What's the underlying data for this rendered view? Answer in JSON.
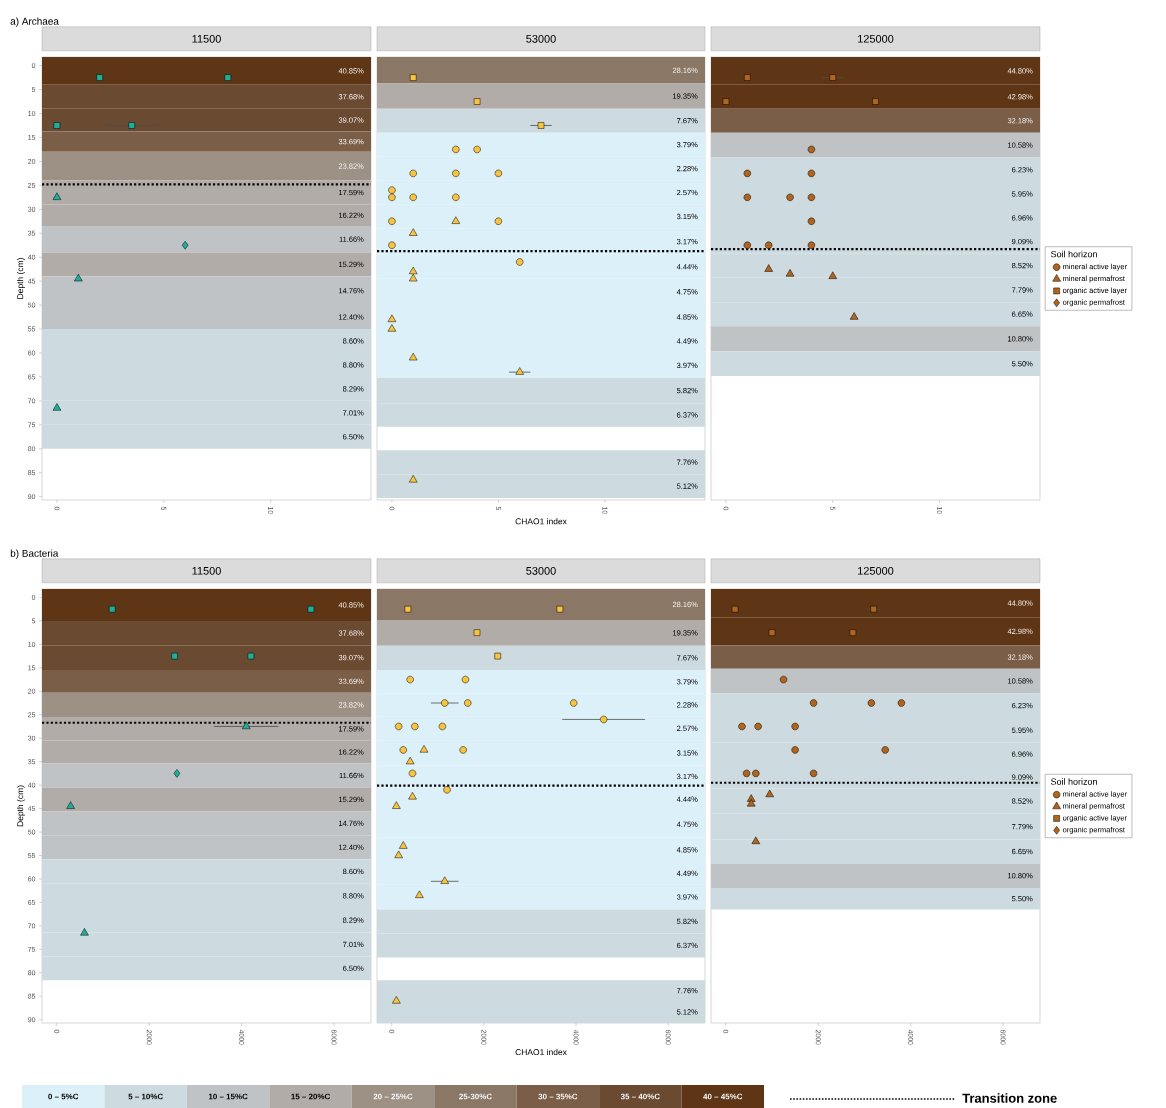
{
  "chart_data": [
    {
      "type": "scatter",
      "title": "11500",
      "ylabel": "Depth (cm)",
      "annotations": [
        "a) Archaea"
      ],
      "xlim": [
        -0.7,
        14.7
      ],
      "ylim": [
        90.7,
        -1.8
      ],
      "xticks": [
        0,
        5,
        10
      ],
      "yticks": [
        0,
        5,
        10,
        15,
        20,
        25,
        30,
        35,
        40,
        45,
        50,
        55,
        60,
        65,
        70,
        75,
        80,
        85,
        90
      ],
      "bands": [
        {
          "axis": "y",
          "from": -1.8,
          "to": 4,
          "label": "40.85%",
          "color": "#5f3615"
        },
        {
          "axis": "y",
          "from": 4,
          "to": 9,
          "label": "37.68%",
          "color": "#6b4a32"
        },
        {
          "axis": "y",
          "from": 9,
          "to": 13.75,
          "label": "39.07%",
          "color": "#6b4a32"
        },
        {
          "axis": "y",
          "from": 13.75,
          "to": 18,
          "label": "33.69%",
          "color": "#7a5e48"
        },
        {
          "axis": "y",
          "from": 18,
          "to": 24,
          "label": "23.82%",
          "color": "#9d9084"
        },
        {
          "axis": "y",
          "from": 24,
          "to": 29,
          "label": "17.59%",
          "color": "#b1aca8"
        },
        {
          "axis": "y",
          "from": 29,
          "to": 33.5,
          "label": "16.22%",
          "color": "#b1aca8"
        },
        {
          "axis": "y",
          "from": 33.5,
          "to": 39,
          "label": "11.66%",
          "color": "#c0c3c5"
        },
        {
          "axis": "y",
          "from": 39,
          "to": 44,
          "label": "15.29%",
          "color": "#b1aca8"
        },
        {
          "axis": "y",
          "from": 44,
          "to": 50,
          "label": "14.76%",
          "color": "#c0c3c5"
        },
        {
          "axis": "y",
          "from": 50,
          "to": 55,
          "label": "12.40%",
          "color": "#c0c3c5"
        },
        {
          "axis": "y",
          "from": 55,
          "to": 60,
          "label": "8.60%",
          "color": "#cddbe1"
        },
        {
          "axis": "y",
          "from": 60,
          "to": 65,
          "label": "8.80%",
          "color": "#cddbe1"
        },
        {
          "axis": "y",
          "from": 65,
          "to": 70,
          "label": "8.29%",
          "color": "#cddbe1"
        },
        {
          "axis": "y",
          "from": 70,
          "to": 75,
          "label": "7.01%",
          "color": "#cddbe1"
        },
        {
          "axis": "y",
          "from": 75,
          "to": 80,
          "label": "6.50%",
          "color": "#cddbe1"
        }
      ],
      "ref_lines": [
        {
          "axis": "y",
          "value": 24.8,
          "line_style": "dotted"
        }
      ],
      "series": [
        {
          "color": "#1fae9a",
          "marker": "triangle",
          "x": [
            0,
            1,
            0
          ],
          "values": [
            27.5,
            44.5,
            71.5
          ]
        },
        {
          "color": "#1fae9a",
          "marker": "square",
          "x": [
            2,
            8,
            0,
            3.5
          ],
          "values": [
            2.5,
            2.5,
            12.5,
            12.5
          ],
          "xerrors": [
            null,
            null,
            null,
            1.25
          ]
        },
        {
          "color": "#1fae9a",
          "marker": "diamond",
          "x": [
            6
          ],
          "values": [
            37.5
          ]
        }
      ]
    },
    {
      "type": "scatter",
      "title": "53000",
      "xlabel": "CHAO1 index",
      "tick_labels": "x",
      "xlim": [
        -0.7,
        14.7
      ],
      "ylim": [
        90.7,
        -1.8
      ],
      "xticks": [
        0,
        5,
        10
      ],
      "bands": [
        {
          "axis": "y",
          "from": -1.8,
          "to": 3.75,
          "label": "28.16%",
          "color": "#8b7766"
        },
        {
          "axis": "y",
          "from": 3.75,
          "to": 9,
          "label": "19.35%",
          "color": "#b1aca8"
        },
        {
          "axis": "y",
          "from": 9,
          "to": 14,
          "label": "7.67%",
          "color": "#cddbe1"
        },
        {
          "axis": "y",
          "from": 14,
          "to": 19,
          "label": "3.79%",
          "color": "#dcf0fa"
        },
        {
          "axis": "y",
          "from": 19,
          "to": 24,
          "label": "2.28%",
          "color": "#dcf0fa"
        },
        {
          "axis": "y",
          "from": 24,
          "to": 29,
          "label": "2.57%",
          "color": "#dcf0fa"
        },
        {
          "axis": "y",
          "from": 29,
          "to": 34,
          "label": "3.15%",
          "color": "#dcf0fa"
        },
        {
          "axis": "y",
          "from": 34,
          "to": 39.5,
          "label": "3.17%",
          "color": "#dcf0fa"
        },
        {
          "axis": "y",
          "from": 39.5,
          "to": 44.5,
          "label": "4.44%",
          "color": "#dcf0fa"
        },
        {
          "axis": "y",
          "from": 44.5,
          "to": 50,
          "label": "4.75%",
          "color": "#dcf0fa"
        },
        {
          "axis": "y",
          "from": 50,
          "to": 55,
          "label": "4.85%",
          "color": "#dcf0fa"
        },
        {
          "axis": "y",
          "from": 55,
          "to": 60,
          "label": "4.49%",
          "color": "#dcf0fa"
        },
        {
          "axis": "y",
          "from": 60,
          "to": 65.2,
          "label": "3.97%",
          "color": "#dcf0fa"
        },
        {
          "axis": "y",
          "from": 65.2,
          "to": 70.5,
          "label": "5.82%",
          "color": "#cddbe1"
        },
        {
          "axis": "y",
          "from": 70.5,
          "to": 75.4,
          "label": "6.37%",
          "color": "#cddbe1"
        },
        {
          "axis": "y",
          "from": 80.3,
          "to": 85.3,
          "label": "7.76%",
          "color": "#cddbe1"
        },
        {
          "axis": "y",
          "from": 85.3,
          "to": 90.3,
          "label": "5.12%",
          "color": "#cddbe1"
        }
      ],
      "ref_lines": [
        {
          "axis": "y",
          "value": 38.75,
          "line_style": "dotted"
        }
      ],
      "series": [
        {
          "color": "#f7c340",
          "marker": "circle",
          "x": [
            3,
            4,
            1,
            3,
            5,
            0,
            0,
            1,
            3,
            0,
            5,
            0,
            6
          ],
          "values": [
            17.5,
            17.5,
            22.5,
            22.5,
            22.5,
            26,
            27.5,
            27.5,
            27.5,
            32.5,
            32.5,
            37.5,
            41
          ]
        },
        {
          "color": "#f7c340",
          "marker": "triangle",
          "x": [
            3,
            1,
            1,
            1,
            0,
            0,
            1,
            6,
            1
          ],
          "values": [
            32.5,
            35,
            43,
            44.5,
            53,
            55,
            61,
            64,
            86.5
          ],
          "xerrors": [
            null,
            null,
            null,
            null,
            null,
            null,
            null,
            0.5,
            null
          ]
        },
        {
          "color": "#f7c340",
          "marker": "square",
          "x": [
            1,
            4,
            7
          ],
          "values": [
            2.5,
            7.5,
            12.5
          ],
          "xerrors": [
            null,
            null,
            0.5
          ]
        }
      ]
    },
    {
      "type": "scatter",
      "title": "125000",
      "tick_labels": "x",
      "legend": "right",
      "legend_title": "Soil horizon",
      "xlim": [
        -0.7,
        14.7
      ],
      "ylim": [
        90.7,
        -1.8
      ],
      "xticks": [
        0,
        5,
        10
      ],
      "bands": [
        {
          "axis": "y",
          "from": -1.8,
          "to": 4,
          "label": "44.80%",
          "color": "#5f3615"
        },
        {
          "axis": "y",
          "from": 4,
          "to": 9,
          "label": "42.98%",
          "color": "#5f3615"
        },
        {
          "axis": "y",
          "from": 9,
          "to": 14,
          "label": "32.18%",
          "color": "#7a5e48"
        },
        {
          "axis": "y",
          "from": 14,
          "to": 19.2,
          "label": "10.58%",
          "color": "#c0c3c5"
        },
        {
          "axis": "y",
          "from": 19.2,
          "to": 24.3,
          "label": "6.23%",
          "color": "#cddbe1"
        },
        {
          "axis": "y",
          "from": 24.3,
          "to": 29.3,
          "label": "5.95%",
          "color": "#cddbe1"
        },
        {
          "axis": "y",
          "from": 29.3,
          "to": 34.3,
          "label": "6.96%",
          "color": "#cddbe1"
        },
        {
          "axis": "y",
          "from": 34.3,
          "to": 39.2,
          "label": "9.09%",
          "color": "#cddbe1"
        },
        {
          "axis": "y",
          "from": 39.2,
          "to": 44.3,
          "label": "8.52%",
          "color": "#cddbe1"
        },
        {
          "axis": "y",
          "from": 44.3,
          "to": 49.4,
          "label": "7.79%",
          "color": "#cddbe1"
        },
        {
          "axis": "y",
          "from": 49.4,
          "to": 54.4,
          "label": "6.65%",
          "color": "#cddbe1"
        },
        {
          "axis": "y",
          "from": 54.4,
          "to": 59.7,
          "label": "10.80%",
          "color": "#c0c3c5"
        },
        {
          "axis": "y",
          "from": 59.7,
          "to": 64.8,
          "label": "5.50%",
          "color": "#cddbe1"
        }
      ],
      "ref_lines": [
        {
          "axis": "y",
          "value": 38.3,
          "line_style": "dotted"
        }
      ],
      "series": [
        {
          "name": "mineral active layer",
          "color": "#b0651e",
          "marker": "circle",
          "x": [
            4,
            1,
            4,
            1,
            3,
            4,
            4,
            1,
            2,
            4
          ],
          "values": [
            17.5,
            22.5,
            22.5,
            27.5,
            27.5,
            27.5,
            32.5,
            37.5,
            37.5,
            37.5
          ]
        },
        {
          "name": "mineral permafrost",
          "color": "#b0651e",
          "marker": "triangle",
          "x": [
            2,
            3,
            5,
            6
          ],
          "values": [
            42.5,
            43.5,
            44,
            52.5
          ]
        },
        {
          "name": "organic active layer",
          "color": "#b0651e",
          "marker": "square",
          "x": [
            1,
            5,
            0,
            7
          ],
          "values": [
            2.5,
            2.5,
            7.5,
            7.5
          ],
          "xerrors": [
            null,
            0.5,
            null,
            null
          ]
        },
        {
          "name": "organic permafrost",
          "color": "#b0651e",
          "marker": "diamond"
        }
      ]
    },
    {
      "type": "scatter",
      "title": "11500",
      "ylabel": "Depth (cm)",
      "annotations": [
        "b) Bacteria"
      ],
      "xlim": [
        -320,
        6800
      ],
      "ylim": [
        90.7,
        -1.8
      ],
      "xticks": [
        0,
        2000,
        4000,
        6000
      ],
      "yticks": [
        0,
        5,
        10,
        15,
        20,
        25,
        30,
        35,
        40,
        45,
        50,
        55,
        60,
        65,
        70,
        75,
        80,
        85,
        90
      ],
      "bands": [
        {
          "axis": "y",
          "from": -1.8,
          "to": 5,
          "label": "40.85%",
          "color": "#5f3615"
        },
        {
          "axis": "y",
          "from": 5,
          "to": 10.2,
          "label": "37.68%",
          "color": "#6b4a32"
        },
        {
          "axis": "y",
          "from": 10.2,
          "to": 15.45,
          "label": "39.07%",
          "color": "#6b4a32"
        },
        {
          "axis": "y",
          "from": 15.45,
          "to": 20.3,
          "label": "33.69%",
          "color": "#7a5e48"
        },
        {
          "axis": "y",
          "from": 20.3,
          "to": 25.5,
          "label": "23.82%",
          "color": "#9d9084"
        },
        {
          "axis": "y",
          "from": 25.5,
          "to": 30.5,
          "label": "17.59%",
          "color": "#b1aca8"
        },
        {
          "axis": "y",
          "from": 30.5,
          "to": 35.4,
          "label": "16.22%",
          "color": "#b1aca8"
        },
        {
          "axis": "y",
          "from": 35.4,
          "to": 40.5,
          "label": "11.66%",
          "color": "#c0c3c5"
        },
        {
          "axis": "y",
          "from": 40.5,
          "to": 45.6,
          "label": "15.29%",
          "color": "#b1aca8"
        },
        {
          "axis": "y",
          "from": 45.6,
          "to": 50.7,
          "label": "14.76%",
          "color": "#c0c3c5"
        },
        {
          "axis": "y",
          "from": 50.7,
          "to": 55.8,
          "label": "12.40%",
          "color": "#c0c3c5"
        },
        {
          "axis": "y",
          "from": 55.8,
          "to": 61,
          "label": "8.60%",
          "color": "#cddbe1"
        },
        {
          "axis": "y",
          "from": 61,
          "to": 66.2,
          "label": "8.80%",
          "color": "#cddbe1"
        },
        {
          "axis": "y",
          "from": 66.2,
          "to": 71.4,
          "label": "8.29%",
          "color": "#cddbe1"
        },
        {
          "axis": "y",
          "from": 71.4,
          "to": 76.5,
          "label": "7.01%",
          "color": "#cddbe1"
        },
        {
          "axis": "y",
          "from": 76.5,
          "to": 81.6,
          "label": "6.50%",
          "color": "#cddbe1"
        }
      ],
      "ref_lines": [
        {
          "axis": "y",
          "value": 26.7,
          "line_style": "dotted"
        }
      ],
      "series": [
        {
          "color": "#1fae9a",
          "marker": "triangle",
          "x": [
            4100,
            300,
            600
          ],
          "values": [
            27.5,
            44.5,
            71.5
          ],
          "xerrors": [
            700,
            null,
            null
          ]
        },
        {
          "color": "#1fae9a",
          "marker": "square",
          "x": [
            1200,
            5500,
            2550,
            4200
          ],
          "values": [
            2.5,
            2.5,
            12.5,
            12.5
          ]
        },
        {
          "color": "#1fae9a",
          "marker": "diamond",
          "x": [
            2600
          ],
          "values": [
            37.5
          ]
        }
      ]
    },
    {
      "type": "scatter",
      "title": "53000",
      "xlabel": "CHAO1 index",
      "tick_labels": "x",
      "xlim": [
        -320,
        6800
      ],
      "ylim": [
        90.7,
        -1.8
      ],
      "xticks": [
        0,
        2000,
        4000,
        6000
      ],
      "bands": [
        {
          "axis": "y",
          "from": -1.8,
          "to": 4.8,
          "label": "28.16%",
          "color": "#8b7766"
        },
        {
          "axis": "y",
          "from": 4.8,
          "to": 10.3,
          "label": "19.35%",
          "color": "#b1aca8"
        },
        {
          "axis": "y",
          "from": 10.3,
          "to": 15.45,
          "label": "7.67%",
          "color": "#cddbe1"
        },
        {
          "axis": "y",
          "from": 15.45,
          "to": 20.5,
          "label": "3.79%",
          "color": "#dcf0fa"
        },
        {
          "axis": "y",
          "from": 20.5,
          "to": 25.3,
          "label": "2.28%",
          "color": "#dcf0fa"
        },
        {
          "axis": "y",
          "from": 25.3,
          "to": 30.5,
          "label": "2.57%",
          "color": "#dcf0fa"
        },
        {
          "axis": "y",
          "from": 30.5,
          "to": 35.8,
          "label": "3.15%",
          "color": "#dcf0fa"
        },
        {
          "axis": "y",
          "from": 35.8,
          "to": 40.5,
          "label": "3.17%",
          "color": "#dcf0fa"
        },
        {
          "axis": "y",
          "from": 40.5,
          "to": 45.5,
          "label": "4.44%",
          "color": "#dcf0fa"
        },
        {
          "axis": "y",
          "from": 45.5,
          "to": 51.2,
          "label": "4.75%",
          "color": "#dcf0fa"
        },
        {
          "axis": "y",
          "from": 51.2,
          "to": 56.4,
          "label": "4.85%",
          "color": "#dcf0fa"
        },
        {
          "axis": "y",
          "from": 56.4,
          "to": 61.2,
          "label": "4.49%",
          "color": "#dcf0fa"
        },
        {
          "axis": "y",
          "from": 61.2,
          "to": 66.5,
          "label": "3.97%",
          "color": "#dcf0fa"
        },
        {
          "axis": "y",
          "from": 66.5,
          "to": 71.6,
          "label": "5.82%",
          "color": "#cddbe1"
        },
        {
          "axis": "y",
          "from": 71.6,
          "to": 76.75,
          "label": "6.37%",
          "color": "#cddbe1"
        },
        {
          "axis": "y",
          "from": 81.6,
          "to": 86,
          "label": "7.76%",
          "color": "#cddbe1"
        },
        {
          "axis": "y",
          "from": 86,
          "to": 90.7,
          "label": "5.12%",
          "color": "#cddbe1"
        }
      ],
      "ref_lines": [
        {
          "axis": "y",
          "value": 40.1,
          "line_style": "dotted"
        }
      ],
      "series": [
        {
          "color": "#f7c340",
          "marker": "circle",
          "x": [
            400,
            1600,
            1150,
            1650,
            3950,
            4600,
            150,
            500,
            1100,
            250,
            1550,
            450,
            1200
          ],
          "values": [
            17.5,
            17.5,
            22.5,
            22.5,
            22.5,
            26,
            27.5,
            27.5,
            27.5,
            32.5,
            32.5,
            37.5,
            41
          ],
          "xerrors": [
            null,
            null,
            300,
            null,
            null,
            900,
            null,
            null,
            null,
            null,
            null,
            null,
            null
          ]
        },
        {
          "color": "#f7c340",
          "marker": "triangle",
          "x": [
            700,
            400,
            450,
            100,
            250,
            150,
            1150,
            600,
            100
          ],
          "values": [
            32.5,
            35,
            42.5,
            44.5,
            53,
            55,
            60.5,
            63.5,
            86
          ],
          "xerrors": [
            null,
            null,
            null,
            null,
            null,
            null,
            300,
            null,
            null
          ]
        },
        {
          "color": "#f7c340",
          "marker": "square",
          "x": [
            350,
            3650,
            1850,
            2300
          ],
          "values": [
            2.5,
            2.5,
            7.5,
            12.5
          ]
        }
      ]
    },
    {
      "type": "scatter",
      "title": "125000",
      "tick_labels": "x",
      "legend": "right",
      "legend_title": "Soil horizon",
      "xlim": [
        -320,
        6800
      ],
      "ylim": [
        90.7,
        -1.8
      ],
      "xticks": [
        0,
        2000,
        4000,
        6000
      ],
      "annotations": [
        "0 – 5%C",
        "5 – 10%C",
        "10 – 15%C",
        "15 – 20%C",
        "20 – 25%C",
        "25-30%C",
        "30 – 35%C",
        "35 – 40%C",
        "40 – 45%C",
        "Transition zone"
      ],
      "bands": [
        {
          "axis": "y",
          "from": -1.8,
          "to": 4.2,
          "label": "44.80%",
          "color": "#5f3615"
        },
        {
          "axis": "y",
          "from": 4.2,
          "to": 10.25,
          "label": "42.98%",
          "color": "#5f3615"
        },
        {
          "axis": "y",
          "from": 10.25,
          "to": 15.2,
          "label": "32.18%",
          "color": "#7a5e48"
        },
        {
          "axis": "y",
          "from": 15.2,
          "to": 20.4,
          "label": "10.58%",
          "color": "#c0c3c5"
        },
        {
          "axis": "y",
          "from": 20.4,
          "to": 25.7,
          "label": "6.23%",
          "color": "#cddbe1"
        },
        {
          "axis": "y",
          "from": 25.7,
          "to": 30.9,
          "label": "5.95%",
          "color": "#cddbe1"
        },
        {
          "axis": "y",
          "from": 30.9,
          "to": 35.9,
          "label": "6.96%",
          "color": "#cddbe1"
        },
        {
          "axis": "y",
          "from": 35.9,
          "to": 40.7,
          "label": "9.09%",
          "color": "#cddbe1"
        },
        {
          "axis": "y",
          "from": 40.7,
          "to": 46.1,
          "label": "8.52%",
          "color": "#cddbe1"
        },
        {
          "axis": "y",
          "from": 46.1,
          "to": 51.6,
          "label": "7.79%",
          "color": "#cddbe1"
        },
        {
          "axis": "y",
          "from": 51.6,
          "to": 56.7,
          "label": "6.65%",
          "color": "#cddbe1"
        },
        {
          "axis": "y",
          "from": 56.7,
          "to": 61.9,
          "label": "10.80%",
          "color": "#c0c3c5"
        },
        {
          "axis": "y",
          "from": 61.9,
          "to": 66.5,
          "label": "5.50%",
          "color": "#cddbe1"
        }
      ],
      "ref_lines": [
        {
          "axis": "y",
          "value": 39.5,
          "line_style": "dotted"
        }
      ],
      "series": [
        {
          "name": "mineral active layer",
          "color": "#b0651e",
          "marker": "circle",
          "x": [
            1250,
            1900,
            3150,
            3800,
            350,
            700,
            1500,
            1500,
            3450,
            450,
            650,
            1900
          ],
          "values": [
            17.5,
            22.5,
            22.5,
            22.5,
            27.5,
            27.5,
            27.5,
            32.5,
            32.5,
            37.5,
            37.5,
            37.5
          ]
        },
        {
          "name": "mineral permafrost",
          "color": "#b0651e",
          "marker": "triangle",
          "x": [
            950,
            550,
            550,
            650
          ],
          "values": [
            42,
            43,
            44,
            52
          ]
        },
        {
          "name": "organic active layer",
          "color": "#b0651e",
          "marker": "square",
          "x": [
            200,
            3200,
            1000,
            2750
          ],
          "values": [
            2.5,
            2.5,
            7.5,
            7.5
          ],
          "xerrors": [
            null,
            150,
            null,
            null
          ]
        },
        {
          "name": "organic permafrost",
          "color": "#b0651e",
          "marker": "diamond"
        }
      ]
    }
  ]
}
